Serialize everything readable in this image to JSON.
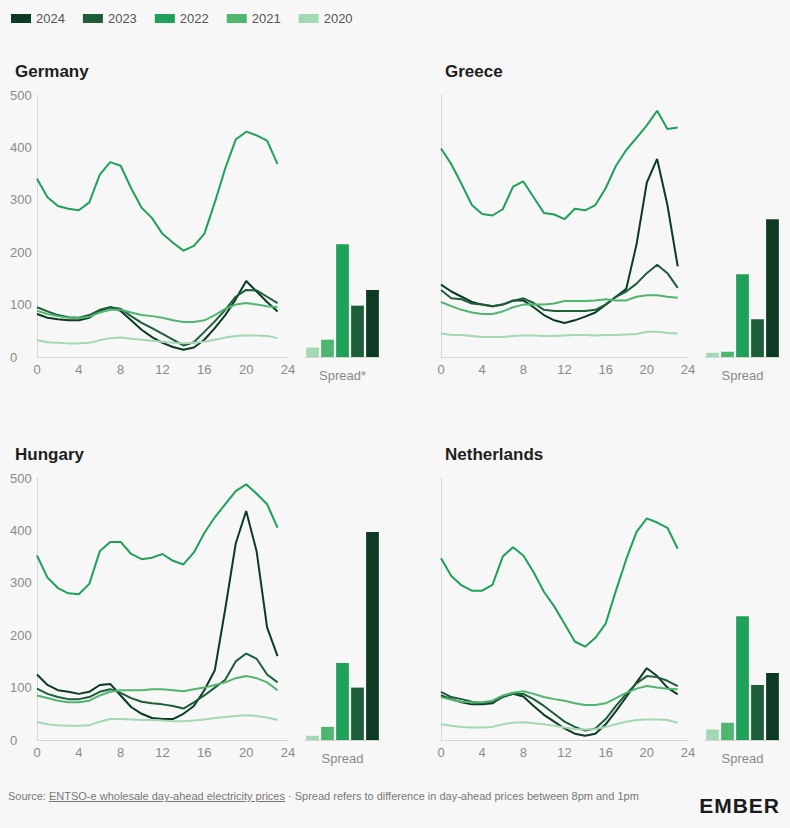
{
  "chart_data": [
    {
      "type": "line",
      "title": "Germany",
      "legend": "top left",
      "grid": false,
      "x": [
        0,
        1,
        2,
        3,
        4,
        5,
        6,
        7,
        8,
        9,
        10,
        11,
        12,
        13,
        14,
        15,
        16,
        17,
        18,
        19,
        20,
        21,
        22,
        23
      ],
      "xlim": [
        0,
        24
      ],
      "xticks": [
        0,
        4,
        8,
        12,
        16,
        20,
        24
      ],
      "ylim": [
        0,
        500
      ],
      "yticks": [
        0,
        100,
        200,
        300,
        400,
        500
      ],
      "series": [
        {
          "name": "2024",
          "color": "#0c3a22",
          "values": [
            82,
            75,
            72,
            70,
            70,
            75,
            88,
            95,
            88,
            70,
            52,
            38,
            27,
            19,
            14,
            18,
            33,
            55,
            80,
            110,
            145,
            125,
            105,
            87
          ]
        },
        {
          "name": "2023",
          "color": "#1d5e39",
          "values": [
            95,
            87,
            80,
            76,
            75,
            80,
            90,
            95,
            92,
            78,
            65,
            55,
            44,
            33,
            22,
            28,
            48,
            68,
            90,
            115,
            128,
            127,
            115,
            103
          ]
        },
        {
          "name": "2022",
          "color": "#1fa159",
          "values": [
            340,
            305,
            288,
            283,
            280,
            295,
            348,
            372,
            365,
            322,
            285,
            265,
            235,
            218,
            203,
            212,
            235,
            295,
            360,
            415,
            430,
            423,
            413,
            368
          ]
        },
        {
          "name": "2021",
          "color": "#4fb66f",
          "values": [
            88,
            82,
            78,
            75,
            74,
            77,
            85,
            90,
            90,
            85,
            80,
            78,
            75,
            70,
            67,
            67,
            70,
            80,
            92,
            100,
            103,
            100,
            97,
            95
          ]
        },
        {
          "name": "2020",
          "color": "#a2d8b4",
          "values": [
            32,
            28,
            27,
            26,
            26,
            27,
            32,
            36,
            37,
            35,
            33,
            31,
            29,
            27,
            26,
            27,
            29,
            33,
            37,
            40,
            41,
            41,
            40,
            36
          ]
        }
      ]
    },
    {
      "type": "bar",
      "xlabel": "Spread*",
      "grid": false,
      "tick_labels": false,
      "categories": [
        null,
        null,
        null,
        null,
        null
      ],
      "ylim": [
        0,
        500
      ],
      "values": [
        18,
        33,
        215,
        98,
        128
      ],
      "colors": [
        "#a2d8b4",
        "#4fb66f",
        "#1fa159",
        "#1d5e39",
        "#0c3a22"
      ]
    },
    {
      "type": "line",
      "title": "Greece",
      "legend": "top left",
      "grid": false,
      "tick_labels": "x",
      "x": [
        0,
        1,
        2,
        3,
        4,
        5,
        6,
        7,
        8,
        9,
        10,
        11,
        12,
        13,
        14,
        15,
        16,
        17,
        18,
        19,
        20,
        21,
        22,
        23
      ],
      "xlim": [
        0,
        24
      ],
      "xticks": [
        0,
        4,
        8,
        12,
        16,
        20,
        24
      ],
      "ylim": [
        0,
        500
      ],
      "yticks": [
        0,
        100,
        200,
        300,
        400,
        500
      ],
      "series": [
        {
          "name": "2024",
          "color": "#0c3a22",
          "values": [
            138,
            125,
            115,
            105,
            100,
            97,
            100,
            108,
            108,
            95,
            80,
            70,
            65,
            70,
            77,
            85,
            100,
            115,
            130,
            215,
            333,
            378,
            290,
            173
          ]
        },
        {
          "name": "2023",
          "color": "#1d5e39",
          "values": [
            128,
            112,
            110,
            102,
            100,
            97,
            100,
            107,
            112,
            103,
            90,
            88,
            88,
            88,
            88,
            90,
            100,
            115,
            125,
            140,
            160,
            176,
            160,
            132
          ]
        },
        {
          "name": "2022",
          "color": "#1fa159",
          "values": [
            398,
            368,
            330,
            290,
            273,
            270,
            282,
            325,
            335,
            305,
            275,
            272,
            263,
            283,
            280,
            290,
            322,
            365,
            395,
            418,
            442,
            470,
            435,
            438
          ]
        },
        {
          "name": "2021",
          "color": "#4fb66f",
          "values": [
            105,
            97,
            90,
            85,
            82,
            82,
            87,
            95,
            100,
            100,
            100,
            102,
            107,
            107,
            107,
            108,
            110,
            108,
            108,
            115,
            118,
            118,
            115,
            113
          ]
        },
        {
          "name": "2020",
          "color": "#a2d8b4",
          "values": [
            45,
            42,
            42,
            40,
            38,
            38,
            38,
            40,
            41,
            41,
            40,
            40,
            41,
            42,
            42,
            41,
            42,
            42,
            43,
            44,
            48,
            48,
            46,
            45
          ]
        }
      ]
    },
    {
      "type": "bar",
      "xlabel": "Spread",
      "grid": false,
      "tick_labels": false,
      "categories": [
        null,
        null,
        null,
        null,
        null
      ],
      "ylim": [
        0,
        500
      ],
      "values": [
        8,
        10,
        158,
        72,
        263
      ],
      "colors": [
        "#a2d8b4",
        "#4fb66f",
        "#1fa159",
        "#1d5e39",
        "#0c3a22"
      ]
    },
    {
      "type": "line",
      "title": "Hungary",
      "legend": "top left",
      "grid": false,
      "x": [
        0,
        1,
        2,
        3,
        4,
        5,
        6,
        7,
        8,
        9,
        10,
        11,
        12,
        13,
        14,
        15,
        16,
        17,
        18,
        19,
        20,
        21,
        22,
        23
      ],
      "xlim": [
        0,
        24
      ],
      "xticks": [
        0,
        4,
        8,
        12,
        16,
        20,
        24
      ],
      "ylim": [
        0,
        500
      ],
      "yticks": [
        0,
        100,
        200,
        300,
        400,
        500
      ],
      "series": [
        {
          "name": "2024",
          "color": "#0c3a22",
          "values": [
            125,
            105,
            95,
            92,
            88,
            92,
            105,
            107,
            85,
            63,
            50,
            42,
            40,
            40,
            50,
            65,
            95,
            133,
            250,
            375,
            437,
            360,
            215,
            160
          ]
        },
        {
          "name": "2023",
          "color": "#1d5e39",
          "values": [
            98,
            88,
            82,
            78,
            78,
            82,
            92,
            97,
            90,
            80,
            73,
            70,
            68,
            65,
            60,
            72,
            85,
            100,
            115,
            150,
            165,
            155,
            125,
            110
          ]
        },
        {
          "name": "2022",
          "color": "#1fa159",
          "values": [
            352,
            310,
            290,
            280,
            278,
            298,
            360,
            378,
            378,
            355,
            345,
            348,
            355,
            342,
            335,
            358,
            395,
            425,
            450,
            475,
            488,
            470,
            450,
            405
          ]
        },
        {
          "name": "2021",
          "color": "#4fb66f",
          "values": [
            85,
            80,
            75,
            72,
            72,
            75,
            85,
            92,
            95,
            95,
            95,
            97,
            97,
            95,
            93,
            97,
            100,
            105,
            110,
            118,
            122,
            118,
            110,
            95
          ]
        },
        {
          "name": "2020",
          "color": "#a2d8b4",
          "values": [
            35,
            30,
            28,
            27,
            27,
            28,
            35,
            40,
            40,
            39,
            38,
            38,
            37,
            36,
            36,
            37,
            39,
            42,
            44,
            46,
            47,
            46,
            43,
            38
          ]
        }
      ]
    },
    {
      "type": "bar",
      "xlabel": "Spread",
      "grid": false,
      "tick_labels": false,
      "categories": [
        null,
        null,
        null,
        null,
        null
      ],
      "ylim": [
        0,
        500
      ],
      "values": [
        8,
        25,
        147,
        100,
        397
      ],
      "colors": [
        "#a2d8b4",
        "#4fb66f",
        "#1fa159",
        "#1d5e39",
        "#0c3a22"
      ]
    },
    {
      "type": "line",
      "title": "Netherlands",
      "legend": "top left",
      "grid": false,
      "tick_labels": "x",
      "x": [
        0,
        1,
        2,
        3,
        4,
        5,
        6,
        7,
        8,
        9,
        10,
        11,
        12,
        13,
        14,
        15,
        16,
        17,
        18,
        19,
        20,
        21,
        22,
        23
      ],
      "xlim": [
        0,
        24
      ],
      "xticks": [
        0,
        4,
        8,
        12,
        16,
        20,
        24
      ],
      "ylim": [
        0,
        500
      ],
      "yticks": [
        0,
        100,
        200,
        300,
        400,
        500
      ],
      "series": [
        {
          "name": "2024",
          "color": "#0c3a22",
          "values": [
            85,
            78,
            72,
            68,
            68,
            70,
            83,
            88,
            83,
            65,
            48,
            35,
            22,
            12,
            8,
            12,
            30,
            55,
            82,
            110,
            137,
            122,
            100,
            87
          ]
        },
        {
          "name": "2023",
          "color": "#1d5e39",
          "values": [
            92,
            82,
            78,
            73,
            70,
            72,
            82,
            88,
            88,
            78,
            65,
            50,
            35,
            25,
            18,
            22,
            40,
            65,
            88,
            108,
            122,
            120,
            113,
            103
          ]
        },
        {
          "name": "2022",
          "color": "#1fa159",
          "values": [
            347,
            313,
            295,
            285,
            285,
            296,
            350,
            368,
            352,
            320,
            283,
            255,
            222,
            188,
            178,
            195,
            222,
            285,
            345,
            397,
            423,
            415,
            405,
            365
          ]
        },
        {
          "name": "2021",
          "color": "#4fb66f",
          "values": [
            82,
            77,
            73,
            72,
            72,
            75,
            85,
            90,
            93,
            88,
            82,
            78,
            75,
            70,
            67,
            67,
            70,
            80,
            90,
            98,
            103,
            100,
            98,
            97
          ]
        },
        {
          "name": "2020",
          "color": "#a2d8b4",
          "values": [
            30,
            27,
            25,
            24,
            24,
            25,
            30,
            33,
            34,
            32,
            30,
            27,
            24,
            21,
            20,
            21,
            25,
            30,
            35,
            38,
            39,
            39,
            38,
            33
          ]
        }
      ]
    },
    {
      "type": "bar",
      "xlabel": "Spread",
      "grid": false,
      "tick_labels": false,
      "categories": [
        null,
        null,
        null,
        null,
        null
      ],
      "ylim": [
        0,
        500
      ],
      "values": [
        20,
        33,
        236,
        105,
        128
      ],
      "colors": [
        "#a2d8b4",
        "#4fb66f",
        "#1fa159",
        "#1d5e39",
        "#0c3a22"
      ]
    }
  ],
  "source": {
    "prefix": "Source:",
    "link": "ENTSO-e wholesale day-ahead electricity prices",
    "note": "· Spread refers to difference in day-ahead prices between 8pm and 1pm"
  },
  "brand": "EMBER"
}
